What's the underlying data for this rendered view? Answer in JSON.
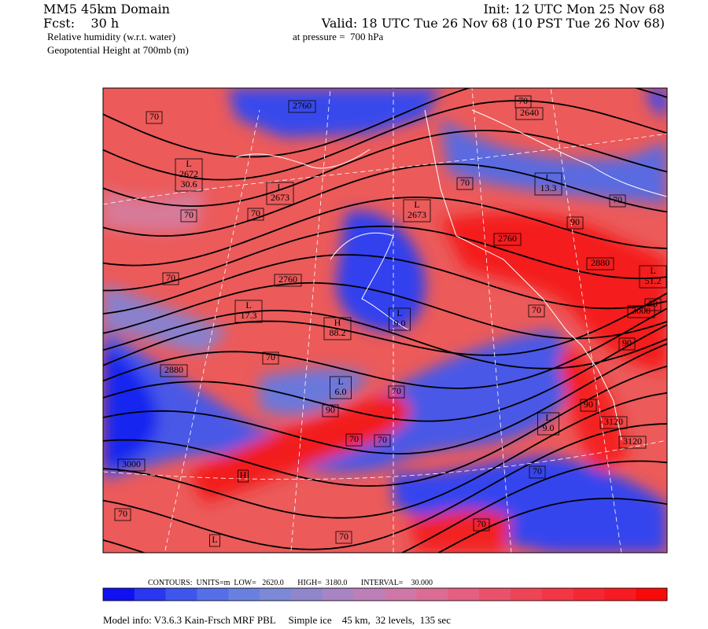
{
  "header": {
    "domain": "MM5 45km Domain",
    "forecast": "Fcst:    30 h",
    "field": "Relative humidity (w.r.t. water)",
    "pressure": "at pressure =  700 hPa",
    "overlay": "Geopotential Height at 700mb (m)",
    "init": "Init: 12 UTC Mon 25 Nov 68",
    "valid": "Valid: 18 UTC Tue 26 Nov 68 (10 PST Tue 26 Nov 68)"
  },
  "map": {
    "labels": [
      [
        "70"
      ],
      [
        "2760"
      ],
      [
        "70"
      ],
      [
        "2640"
      ],
      [
        "L",
        "2672",
        "30.6"
      ],
      [
        "L",
        "2673"
      ],
      [
        "L",
        "2673"
      ],
      [
        "70"
      ],
      [
        "L",
        "13.3"
      ],
      [
        "70"
      ],
      [
        "70"
      ],
      [
        "70"
      ],
      [
        "90"
      ],
      [
        "2760"
      ],
      [
        "2880"
      ],
      [
        "L",
        "51.2"
      ],
      [
        "70"
      ],
      [
        "2760"
      ],
      [
        "L",
        "17.3"
      ],
      [
        "H",
        "88.2"
      ],
      [
        "L",
        "9.0"
      ],
      [
        "70"
      ],
      [
        "70"
      ],
      [
        "3000"
      ],
      [
        "90"
      ],
      [
        "70"
      ],
      [
        "2880"
      ],
      [
        "L",
        "6.0"
      ],
      [
        "70"
      ],
      [
        "90"
      ],
      [
        "90"
      ],
      [
        "L",
        "9.0"
      ],
      [
        "3120"
      ],
      [
        "70"
      ],
      [
        "70"
      ],
      [
        "3120"
      ],
      [
        "3000"
      ],
      [
        "H"
      ],
      [
        "70"
      ],
      [
        "70"
      ],
      [
        "70"
      ],
      [
        "70"
      ],
      [
        "L"
      ]
    ]
  },
  "colorbar": {
    "colors": [
      "#1010f0",
      "#2a36f0",
      "#3f56ee",
      "#566fe8",
      "#6a80e0",
      "#7d88d6",
      "#8f86cc",
      "#a884c4",
      "#bd7fb8",
      "#cf78a8",
      "#dc6c94",
      "#e45f80",
      "#ea526c",
      "#ee4458",
      "#f23646",
      "#f42834",
      "#f61a22",
      "#f80a0a"
    ],
    "caption": "CONTOURS:  UNITS=m  LOW=   2620.0       HIGH=  3180.0       INTERVAL=    30.000"
  },
  "footer": {
    "model_info": "Model info: V3.6.3 Kain-Frsch MRF PBL     Simple ice    45 km,  32 levels,  135 sec"
  }
}
